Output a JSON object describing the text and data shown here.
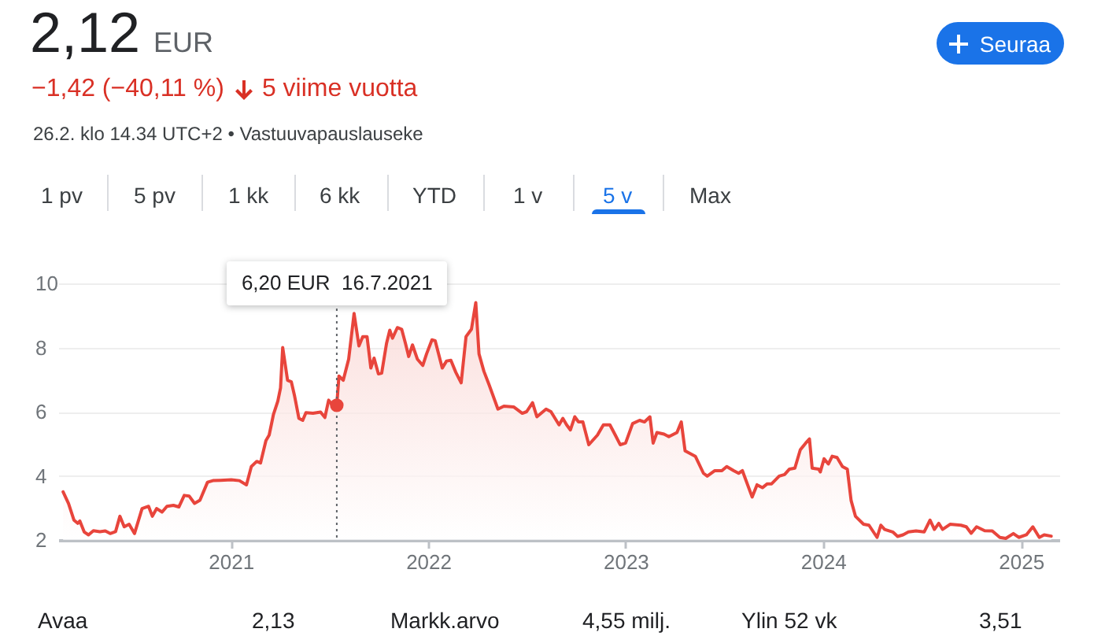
{
  "chart_data": {
    "type": "area",
    "title": "2,12 EUR",
    "subtitle": "−1,42 (−40,11 %)",
    "annotations": [
      "5 viime vuotta",
      "26.2. klo 14.34 UTC+2 • Vastuuvapauslauseke",
      "Seuraa",
      "1 pv",
      "5 pv",
      "1 kk",
      "6 kk",
      "YTD",
      "1 v",
      "5 v",
      "Max",
      "Avaa",
      "2,13",
      "Markk.arvo",
      "4,55 milj.",
      "Ylin 52 vk",
      "3,51"
    ],
    "series": [
      {
        "color": "#e8453c",
        "x": [
          "2020-02-26",
          "2020-03-07",
          "2020-03-17",
          "2020-03-24",
          "2020-03-28",
          "2020-04-05",
          "2020-04-13",
          "2020-04-22",
          "2020-05-04",
          "2020-05-14",
          "2020-05-23",
          "2020-06-02",
          "2020-06-10",
          "2020-06-18",
          "2020-06-27",
          "2020-07-07",
          "2020-07-21",
          "2020-08-02",
          "2020-08-09",
          "2020-08-17",
          "2020-08-27",
          "2020-09-05",
          "2020-09-17",
          "2020-09-27",
          "2020-10-07",
          "2020-10-16",
          "2020-10-26",
          "2020-11-05",
          "2020-11-19",
          "2020-11-29",
          "2020-12-13",
          "2021-01-02",
          "2021-01-17",
          "2021-01-30",
          "2021-02-08",
          "2021-02-18",
          "2021-02-25",
          "2021-03-07",
          "2021-03-13",
          "2021-03-21",
          "2021-03-29",
          "2021-04-03",
          "2021-04-07",
          "2021-04-16",
          "2021-04-23",
          "2021-04-29",
          "2021-05-07",
          "2021-05-14",
          "2021-05-20",
          "2021-06-02",
          "2021-06-16",
          "2021-06-24",
          "2021-07-01",
          "2021-07-08",
          "2021-07-16",
          "2021-07-20",
          "2021-07-28",
          "2021-08-07",
          "2021-08-17",
          "2021-08-26",
          "2021-09-02",
          "2021-09-10",
          "2021-09-17",
          "2021-09-23",
          "2021-10-01",
          "2021-10-07",
          "2021-10-16",
          "2021-10-22",
          "2021-10-27",
          "2021-11-05",
          "2021-11-13",
          "2021-11-20",
          "2021-11-26",
          "2021-12-03",
          "2021-12-12",
          "2021-12-22",
          "2021-12-29",
          "2022-01-08",
          "2022-01-14",
          "2022-01-27",
          "2022-02-04",
          "2022-02-12",
          "2022-02-21",
          "2022-03-03",
          "2022-03-12",
          "2022-03-22",
          "2022-03-30",
          "2022-04-05",
          "2022-04-14",
          "2022-04-24",
          "2022-05-10",
          "2022-05-21",
          "2022-06-08",
          "2022-06-24",
          "2022-07-02",
          "2022-07-13",
          "2022-07-21",
          "2022-08-07",
          "2022-08-16",
          "2022-08-31",
          "2022-09-07",
          "2022-09-14",
          "2022-09-21",
          "2022-09-29",
          "2022-10-06",
          "2022-10-14",
          "2022-10-25",
          "2022-11-10",
          "2022-11-21",
          "2022-12-03",
          "2022-12-13",
          "2022-12-22",
          "2023-01-01",
          "2023-01-14",
          "2023-01-27",
          "2023-02-05",
          "2023-02-15",
          "2023-02-21",
          "2023-02-28",
          "2023-03-13",
          "2023-03-22",
          "2023-04-06",
          "2023-04-14",
          "2023-04-21",
          "2023-05-10",
          "2023-05-25",
          "2023-06-01",
          "2023-06-15",
          "2023-06-28",
          "2023-07-07",
          "2023-07-20",
          "2023-07-29",
          "2023-08-05",
          "2023-08-23",
          "2023-09-01",
          "2023-09-11",
          "2023-09-20",
          "2023-09-28",
          "2023-10-12",
          "2023-10-22",
          "2023-10-31",
          "2023-11-10",
          "2023-11-20",
          "2023-11-30",
          "2023-12-07",
          "2023-12-12",
          "2023-12-24",
          "2023-12-27",
          "2024-01-03",
          "2024-01-11",
          "2024-01-18",
          "2024-01-27",
          "2024-02-06",
          "2024-02-15",
          "2024-02-22",
          "2024-03-01",
          "2024-03-16",
          "2024-03-26",
          "2024-04-10",
          "2024-04-17",
          "2024-04-24",
          "2024-05-09",
          "2024-05-18",
          "2024-05-28",
          "2024-06-07",
          "2024-06-21",
          "2024-07-06",
          "2024-07-17",
          "2024-07-25",
          "2024-08-02",
          "2024-08-09",
          "2024-08-23",
          "2024-09-12",
          "2024-09-22",
          "2024-10-01",
          "2024-10-11",
          "2024-10-26",
          "2024-11-09",
          "2024-11-23",
          "2024-12-04",
          "2024-12-18",
          "2024-12-28",
          "2025-01-11",
          "2025-01-23",
          "2025-02-04",
          "2025-02-13",
          "2025-02-26"
        ],
        "values": [
          3.5,
          3.14,
          2.62,
          2.52,
          2.59,
          2.25,
          2.16,
          2.29,
          2.26,
          2.28,
          2.2,
          2.26,
          2.74,
          2.41,
          2.49,
          2.2,
          2.98,
          3.05,
          2.74,
          2.98,
          2.87,
          3.05,
          3.08,
          3.03,
          3.39,
          3.37,
          3.14,
          3.24,
          3.8,
          3.85,
          3.86,
          3.88,
          3.85,
          3.72,
          4.29,
          4.45,
          4.4,
          5.1,
          5.27,
          5.92,
          6.33,
          6.74,
          8.0,
          6.98,
          6.93,
          6.49,
          5.79,
          5.73,
          5.97,
          5.95,
          5.99,
          5.82,
          6.36,
          6.2,
          6.2,
          7.11,
          6.98,
          7.64,
          9.06,
          8.05,
          8.34,
          8.34,
          7.36,
          7.67,
          7.18,
          7.2,
          8.13,
          8.54,
          8.29,
          8.62,
          8.57,
          8.13,
          7.72,
          8.08,
          7.64,
          7.44,
          7.8,
          8.24,
          8.21,
          7.36,
          7.58,
          7.6,
          7.23,
          6.9,
          8.34,
          8.57,
          9.4,
          7.8,
          7.26,
          6.82,
          6.08,
          6.17,
          6.15,
          5.95,
          6.0,
          6.28,
          5.84,
          6.08,
          6.0,
          5.59,
          5.79,
          5.59,
          5.43,
          5.84,
          5.68,
          5.68,
          4.97,
          5.27,
          5.59,
          5.59,
          5.27,
          4.97,
          5.02,
          5.63,
          5.73,
          5.68,
          5.84,
          5.02,
          5.35,
          5.3,
          5.22,
          5.35,
          5.68,
          4.78,
          4.61,
          4.08,
          3.99,
          4.16,
          4.16,
          4.29,
          4.16,
          4.08,
          4.16,
          3.34,
          3.72,
          3.63,
          3.75,
          3.75,
          3.99,
          4.04,
          4.21,
          4.24,
          4.81,
          5.02,
          5.15,
          4.24,
          4.21,
          4.12,
          4.53,
          4.37,
          4.61,
          4.57,
          4.29,
          4.21,
          3.23,
          2.74,
          2.49,
          2.46,
          2.08,
          2.46,
          2.33,
          2.25,
          2.11,
          2.16,
          2.25,
          2.28,
          2.25,
          2.62,
          2.33,
          2.52,
          2.33,
          2.49,
          2.46,
          2.41,
          2.21,
          2.41,
          2.29,
          2.28,
          2.08,
          2.05,
          2.2,
          2.08,
          2.16,
          2.41,
          2.08,
          2.16,
          2.12
        ]
      },
      {
        "type": "scatter",
        "color": "#e8453c",
        "marker": "circle",
        "x": [
          "2021-07-16"
        ],
        "values": [
          6.2
        ]
      }
    ],
    "xlim": [
      "2020-02-17",
      "2025-03-13"
    ],
    "xticks": [
      "2021",
      "2022",
      "2023",
      "2024",
      "2025"
    ],
    "ylim": [
      2,
      10
    ],
    "yticks": [
      2,
      4,
      6,
      8,
      10
    ],
    "grid": "y",
    "ref_lines": [
      {
        "axis": "x",
        "value": "2021-07-16",
        "label": "6,20 EUR  16.7.2021",
        "line_style": "dotted",
        "color": "#5f6368"
      }
    ]
  }
}
